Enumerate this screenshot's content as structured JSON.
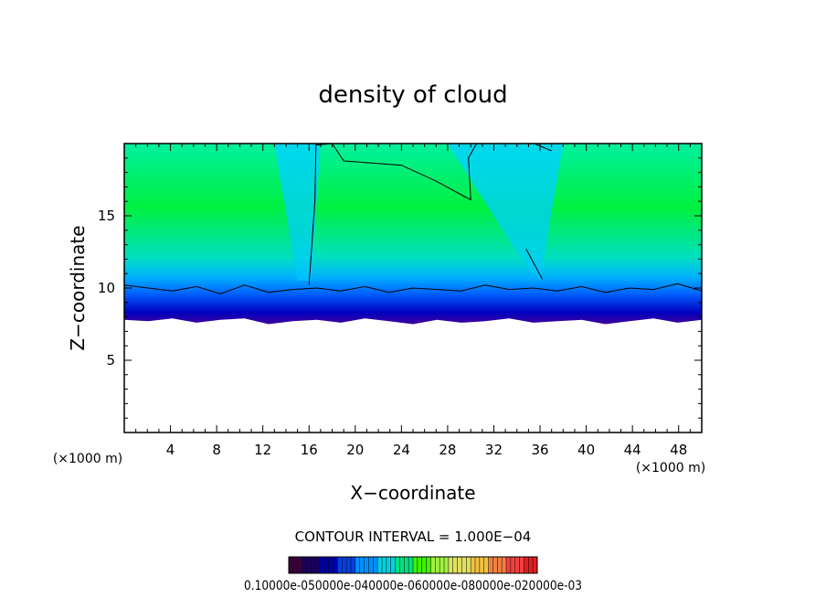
{
  "chart_data": {
    "type": "heatmap",
    "title": "density of cloud",
    "xlabel": "X−coordinate",
    "ylabel": "Z−coordinate",
    "x_unit": "(×1000 m)",
    "y_unit": "(×1000 m)",
    "xlim": [
      0,
      50
    ],
    "ylim": [
      0,
      20
    ],
    "x_ticks": [
      "4",
      "8",
      "12",
      "16",
      "20",
      "24",
      "28",
      "32",
      "36",
      "40",
      "44",
      "48"
    ],
    "y_ticks": [
      "5",
      "10",
      "15"
    ],
    "x_tick_values": [
      4,
      8,
      12,
      16,
      20,
      24,
      28,
      32,
      36,
      40,
      44,
      48
    ],
    "y_tick_values": [
      5,
      10,
      15
    ],
    "cloud_base_z": 7.7,
    "cloud_base_values": [
      7.8,
      7.7,
      7.9,
      7.6,
      7.8,
      7.9,
      7.5,
      7.7,
      7.8,
      7.6,
      7.9,
      7.7,
      7.5,
      7.8,
      7.6,
      7.7,
      7.9,
      7.6,
      7.7,
      7.8,
      7.5,
      7.7,
      7.9,
      7.6,
      7.8
    ],
    "contour_10_values": [
      10.2,
      10.0,
      9.8,
      10.1,
      9.6,
      10.2,
      9.7,
      9.9,
      10.0,
      9.8,
      10.1,
      9.7,
      10.0,
      9.9,
      9.8,
      10.2,
      9.9,
      10.0,
      9.8,
      10.1,
      9.7,
      10.0,
      9.9,
      10.3,
      9.8
    ],
    "contour_interval_text": "CONTOUR INTERVAL = 1.000E−04",
    "colorbar": {
      "labels_text": "0.10000e-050000e-040000e-060000e-080000e-020000e-03",
      "colors": [
        "#3a003a",
        "#1a0060",
        "#0000a8",
        "#0040e0",
        "#0090ff",
        "#00d0e0",
        "#00e080",
        "#40f000",
        "#a0f040",
        "#e0e060",
        "#f0c040",
        "#f08040",
        "#f04040",
        "#e02020"
      ]
    }
  }
}
